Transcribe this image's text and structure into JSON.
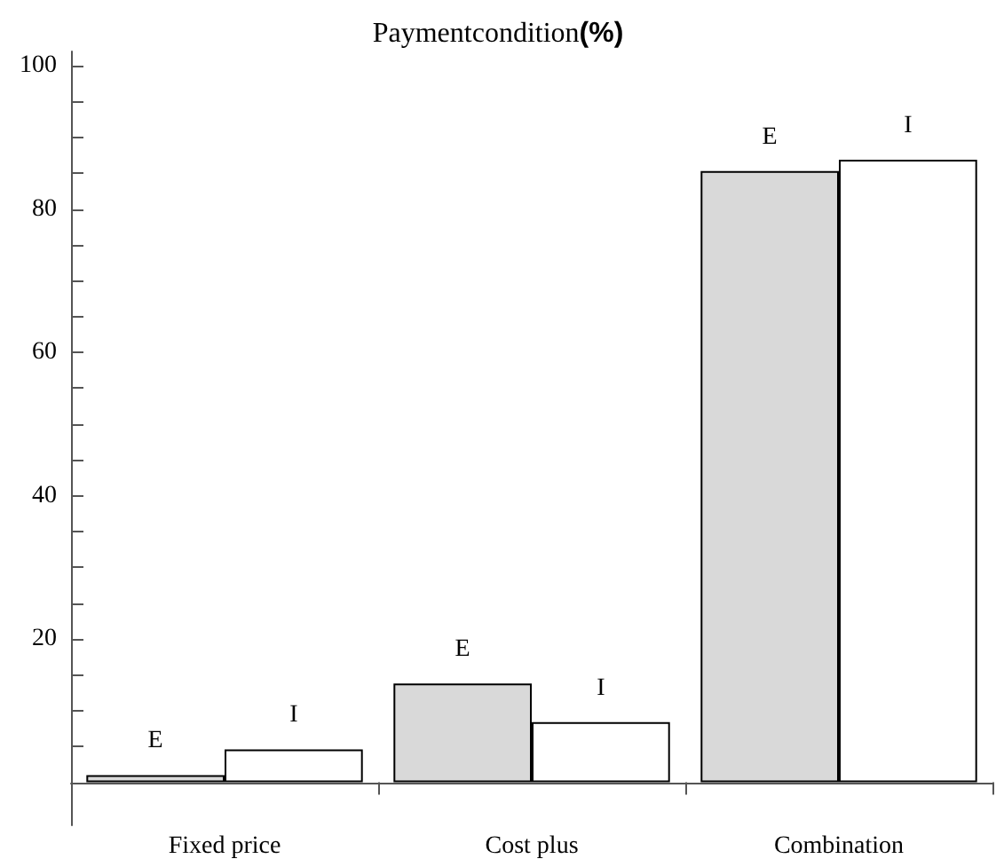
{
  "chart_data": {
    "type": "bar",
    "title": "Paymentcondition(%)",
    "categories": [
      "Fixed price",
      "Cost plus",
      "Combination"
    ],
    "series": [
      {
        "name": "E",
        "color": "#d9d9d9",
        "values": [
          1.0,
          13.8,
          85.3
        ]
      },
      {
        "name": "I",
        "color": "#ffffff",
        "values": [
          4.6,
          8.4,
          86.9
        ]
      }
    ],
    "ylim": [
      -6,
      102
    ],
    "yticks": [
      {
        "value": 5,
        "label": null
      },
      {
        "value": 10,
        "label": null
      },
      {
        "value": 15,
        "label": null
      },
      20,
      {
        "value": 25,
        "label": null
      },
      {
        "value": 30,
        "label": null
      },
      {
        "value": 35,
        "label": null
      },
      40,
      {
        "value": 45,
        "label": null
      },
      {
        "value": 50,
        "label": null
      },
      {
        "value": 55,
        "label": null
      },
      60,
      {
        "value": 65,
        "label": null
      },
      {
        "value": 70,
        "label": null
      },
      {
        "value": 75,
        "label": null
      },
      80,
      {
        "value": 85,
        "label": null
      },
      {
        "value": 90,
        "label": null
      },
      {
        "value": 95,
        "label": null
      },
      100
    ],
    "grid": false,
    "legend": false
  }
}
